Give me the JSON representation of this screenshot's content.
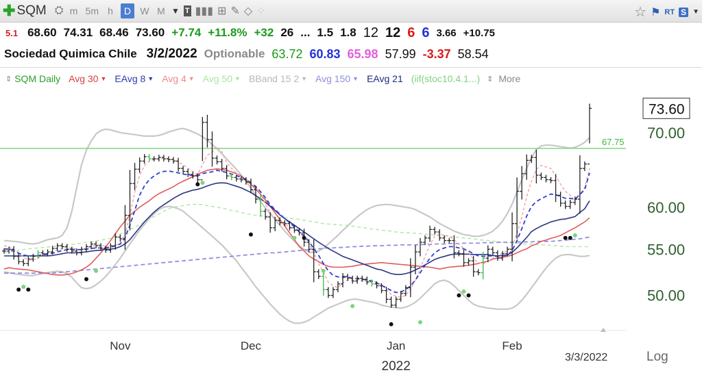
{
  "toolbar": {
    "symbol": "SQM",
    "timeframes": [
      "m",
      "5m",
      "h",
      "D",
      "W",
      "M"
    ],
    "active_timeframe": "D",
    "rt_label": "RT",
    "s_label": "S"
  },
  "quote_row1": {
    "level": "5.1",
    "open": "68.60",
    "high": "74.31",
    "low": "68.46",
    "close": "73.60",
    "change": "+7.74",
    "change_pct": "+11.8%",
    "v1": "+32",
    "v2": "26",
    "ellipsis": "...",
    "v3": "1.5",
    "v4": "1.8",
    "v5": "12",
    "v6": "12",
    "v7": "6",
    "v8": "6",
    "v9": "3.66",
    "v10": "+10.75"
  },
  "quote_row2": {
    "company": "Sociedad Quimica Chile",
    "date": "3/2/2022",
    "optionable": "Optionable",
    "n1": "63.72",
    "n2": "60.83",
    "n3": "65.98",
    "n4": "57.99",
    "n5": "-3.37",
    "n6": "58.54"
  },
  "indicators": [
    {
      "label": "SQM Daily",
      "color": "#2a9d2a"
    },
    {
      "label": "Avg 30",
      "color": "#d84040"
    },
    {
      "label": "EAvg 8",
      "color": "#2a3bb0"
    },
    {
      "label": "Avg 4",
      "color": "#f08a8a"
    },
    {
      "label": "Avg 50",
      "color": "#a8e6a0"
    },
    {
      "label": "BBand 15 2",
      "color": "#b8b8b8"
    },
    {
      "label": "Avg 150",
      "color": "#8f8fe0"
    },
    {
      "label": "EAvg 21",
      "color": "#1e2a80"
    },
    {
      "label": "(iif(stoc10.4.1...)",
      "color": "#7ed37e"
    }
  ],
  "more_label": "More",
  "chart_data": {
    "type": "line",
    "scale": "log",
    "scale_label": "Log",
    "y_ticks": [
      "70.00",
      "60.00",
      "55.00",
      "50.00"
    ],
    "ylim": [
      46.5,
      76.5
    ],
    "x_ticks": [
      "Nov",
      "Dec",
      "Jan",
      "Feb"
    ],
    "year_label": "2022",
    "last_date_label": "3/3/2022",
    "last_price_label": "73.60",
    "last_price": 73.6,
    "reference_line": {
      "value": 67.75,
      "label": "67.75",
      "color": "#7fd87f"
    },
    "colors": {
      "bar": "#222222",
      "bar_green": "#3cb83c",
      "avg30": "#e05a5a",
      "eavg8": "#2c3fd0",
      "avg4": "#f2a0a0",
      "avg50": "#b8e8b0",
      "bband": "#c8c8c8",
      "avg150": "#8f8fe0",
      "eavg21": "#2a3580",
      "dot_black": "#111111",
      "dot_green": "#7ed37e"
    },
    "closes": [
      54.8,
      55.0,
      54.2,
      53.6,
      53.4,
      53.9,
      54.2,
      54.6,
      54.5,
      54.7,
      55.1,
      55.4,
      55.3,
      55.0,
      54.8,
      54.6,
      55.0,
      55.3,
      55.6,
      55.4,
      55.1,
      54.9,
      55.4,
      56.4,
      56.2,
      59.0,
      63.0,
      64.9,
      66.0,
      66.6,
      66.3,
      66.3,
      66.5,
      66.3,
      66.2,
      66.0,
      65.0,
      64.6,
      64.2,
      64.0,
      63.5,
      71.5,
      69.0,
      66.4,
      65.9,
      65.0,
      64.0,
      63.8,
      63.6,
      63.5,
      63.2,
      62.2,
      61.0,
      59.5,
      58.8,
      57.5,
      58.4,
      58.1,
      58.0,
      57.5,
      57.2,
      56.9,
      55.8,
      55.0,
      52.5,
      52.0,
      50.6,
      50.0,
      50.6,
      51.2,
      52.0,
      51.8,
      51.5,
      51.8,
      51.7,
      51.4,
      51.2,
      51.0,
      50.5,
      49.6,
      49.0,
      49.6,
      50.2,
      50.8,
      53.0,
      54.7,
      55.8,
      56.3,
      57.3,
      57.0,
      56.3,
      56.0,
      56.0,
      54.6,
      54.5,
      53.5,
      53.7,
      52.5,
      52.4,
      54.0,
      55.0,
      54.6,
      54.0,
      54.5,
      55.0,
      58.0,
      62.0,
      64.3,
      66.1,
      66.5,
      64.1,
      63.8,
      63.5,
      63.4,
      61.5,
      60.5,
      60.1,
      60.6,
      61.0,
      65.0,
      65.6,
      73.6
    ],
    "avg30": [
      52.8,
      52.95,
      52.85,
      52.8,
      52.75,
      52.7,
      52.6,
      52.5,
      52.4,
      52.3,
      52.2,
      52.15,
      52.15,
      52.2,
      52.3,
      52.5,
      52.7,
      53.0,
      53.4,
      54.0,
      54.6,
      55.3,
      56.0,
      56.8,
      57.6,
      58.3,
      59.0,
      59.5,
      60.0,
      60.4,
      60.8,
      61.3,
      61.7,
      62.0,
      62.3,
      62.6,
      63.0,
      63.3,
      63.6,
      63.9,
      64.2,
      64.5,
      64.75,
      64.85,
      64.95,
      64.85,
      64.75,
      64.55,
      64.3,
      64.0,
      63.5,
      62.9,
      62.3,
      61.6,
      60.9,
      60.1,
      59.3,
      58.5,
      57.7,
      56.9,
      56.1,
      55.3,
      54.8,
      54.25,
      53.9,
      53.6,
      53.3,
      53.1,
      53.0,
      53.0,
      53.0,
      53.05,
      53.1,
      53.2,
      53.3,
      53.35,
      53.4,
      53.45,
      53.5,
      53.45,
      53.4,
      53.35,
      53.3,
      53.25,
      53.2,
      53.15,
      53.1,
      53.05,
      53.0,
      52.9,
      52.8,
      52.9,
      53.0,
      53.05,
      53.1,
      53.15,
      53.2,
      53.3,
      53.4,
      53.55,
      53.65,
      53.9,
      54.0,
      54.1,
      54.2,
      54.35,
      54.6,
      54.85,
      55.05,
      55.4,
      55.6,
      55.9,
      56.05,
      56.25,
      56.4,
      56.6,
      56.9,
      57.2,
      57.5,
      57.85,
      58.2,
      58.7
    ],
    "eavg8": [
      55.05,
      55.0,
      54.8,
      54.55,
      54.35,
      54.25,
      54.25,
      54.3,
      54.35,
      54.45,
      54.55,
      54.7,
      54.85,
      54.95,
      55.0,
      54.95,
      54.95,
      55.0,
      55.1,
      55.15,
      55.15,
      55.15,
      55.25,
      55.4,
      55.6,
      56.3,
      57.8,
      59.6,
      61.5,
      62.7,
      63.5,
      64.0,
      64.4,
      64.6,
      64.65,
      64.55,
      64.4,
      64.25,
      64.15,
      64.05,
      64.0,
      64.3,
      64.45,
      64.55,
      64.75,
      64.6,
      64.45,
      64.25,
      64.05,
      63.8,
      63.55,
      63.1,
      62.6,
      61.95,
      61.2,
      60.3,
      59.7,
      59.15,
      58.6,
      58.1,
      57.6,
      57.0,
      56.55,
      55.9,
      55.1,
      54.3,
      53.4,
      52.6,
      52.1,
      51.95,
      51.9,
      51.95,
      51.8,
      51.75,
      51.7,
      51.6,
      51.5,
      51.3,
      51.05,
      50.8,
      50.5,
      50.3,
      50.35,
      50.6,
      51.0,
      51.6,
      52.4,
      53.2,
      54.0,
      54.6,
      54.95,
      55.15,
      55.3,
      55.3,
      55.15,
      55.05,
      54.8,
      54.5,
      54.25,
      54.2,
      54.25,
      54.25,
      54.2,
      54.25,
      54.3,
      54.85,
      56.0,
      57.4,
      58.9,
      60.1,
      60.7,
      61.05,
      61.35,
      61.65,
      61.55,
      61.35,
      61.1,
      61.1,
      61.0,
      61.6,
      62.2,
      64.4
    ],
    "eavg21": [
      54.25,
      54.25,
      54.25,
      54.25,
      54.25,
      54.25,
      54.25,
      54.25,
      54.25,
      54.25,
      54.3,
      54.4,
      54.5,
      54.6,
      54.6,
      54.6,
      54.65,
      54.7,
      54.8,
      54.85,
      54.9,
      55.0,
      55.0,
      55.1,
      55.3,
      55.6,
      56.1,
      56.8,
      57.5,
      58.2,
      58.8,
      59.4,
      59.9,
      60.3,
      60.7,
      61.1,
      61.45,
      61.75,
      61.95,
      62.15,
      62.25,
      62.45,
      62.7,
      62.9,
      63.05,
      63.1,
      63.05,
      62.85,
      62.65,
      62.45,
      62.15,
      61.85,
      61.45,
      61.05,
      60.6,
      60.1,
      59.6,
      59.05,
      58.6,
      58.2,
      57.8,
      57.4,
      57.0,
      56.6,
      56.2,
      55.8,
      55.45,
      55.1,
      54.8,
      54.5,
      54.2,
      54.0,
      53.8,
      53.6,
      53.4,
      53.2,
      53.0,
      52.8,
      52.7,
      52.5,
      52.3,
      52.2,
      52.2,
      52.3,
      52.45,
      52.7,
      52.95,
      53.25,
      53.55,
      53.85,
      54.05,
      54.2,
      54.35,
      54.45,
      54.45,
      54.45,
      54.45,
      54.4,
      54.4,
      54.4,
      54.4,
      54.3,
      54.25,
      54.3,
      54.35,
      54.65,
      55.15,
      55.75,
      56.35,
      57.05,
      57.4,
      57.7,
      57.95,
      58.2,
      58.35,
      58.5,
      58.55,
      58.7,
      58.85,
      59.35,
      59.8,
      60.8
    ],
    "avg4": [
      55.4,
      55.3,
      55.0,
      54.6,
      54.1,
      53.8,
      53.8,
      54.0,
      54.3,
      54.5,
      54.7,
      54.9,
      55.1,
      55.2,
      55.1,
      55.0,
      55.0,
      55.1,
      55.3,
      55.5,
      55.5,
      55.3,
      55.2,
      55.4,
      55.8,
      56.7,
      59.0,
      61.9,
      64.0,
      65.4,
      66.0,
      66.2,
      66.3,
      66.4,
      66.3,
      66.2,
      65.8,
      65.5,
      65.0,
      64.6,
      64.2,
      65.5,
      66.8,
      67.2,
      68.0,
      67.3,
      65.8,
      65.0,
      64.4,
      63.8,
      63.6,
      63.0,
      62.5,
      61.7,
      60.4,
      59.3,
      58.6,
      58.2,
      57.9,
      57.6,
      57.3,
      57.0,
      56.3,
      55.7,
      54.6,
      53.4,
      52.4,
      51.4,
      51.0,
      50.8,
      51.3,
      51.6,
      51.6,
      51.6,
      51.6,
      51.4,
      51.5,
      51.4,
      51.1,
      50.6,
      50.1,
      49.9,
      49.8,
      50.0,
      50.7,
      51.6,
      52.8,
      54.2,
      55.5,
      56.5,
      56.8,
      56.6,
      56.5,
      56.1,
      55.6,
      55.1,
      54.6,
      53.9,
      53.5,
      53.4,
      53.6,
      54.0,
      54.2,
      54.6,
      54.8,
      55.4,
      56.8,
      58.8,
      61.3,
      63.3,
      64.9,
      65.4,
      65.2,
      65.0,
      64.0,
      62.9,
      62.0,
      61.5,
      60.8,
      61.6,
      62.5,
      65.0
    ],
    "avg50": [
      54.6,
      54.65,
      54.75,
      54.85,
      54.95,
      55.05,
      55.1,
      55.15,
      55.2,
      55.25,
      55.3,
      55.4,
      55.45,
      55.5,
      55.55,
      55.6,
      55.7,
      55.8,
      55.85,
      55.95,
      56.05,
      56.15,
      56.25,
      56.45,
      56.75,
      57.05,
      57.3,
      57.55,
      57.85,
      58.15,
      58.5,
      58.85,
      59.15,
      59.5,
      59.8,
      60.0,
      60.1,
      60.2,
      60.3,
      60.35,
      60.35,
      60.3,
      60.2,
      60.1,
      60.0,
      59.9,
      59.75,
      59.6,
      59.5,
      59.35,
      59.2,
      59.1,
      59.0,
      58.95,
      58.9,
      58.85,
      58.8,
      58.75,
      58.7,
      58.65,
      58.6,
      58.5,
      58.4,
      58.3,
      58.2,
      58.1,
      58.0,
      57.95,
      57.9,
      57.85,
      57.8,
      57.8,
      57.7,
      57.6,
      57.55,
      57.45,
      57.35,
      57.3,
      57.2,
      57.15,
      57.1,
      57.0,
      56.95,
      56.9,
      56.9,
      56.85,
      56.8,
      56.75,
      56.7,
      56.6,
      56.55,
      56.5,
      56.45,
      56.4,
      56.35,
      56.3,
      56.25,
      56.2,
      56.1,
      56.05,
      56.0,
      55.95,
      55.85,
      55.8,
      55.75,
      55.7,
      55.7,
      55.65,
      55.6,
      55.6,
      55.55,
      55.5,
      55.5,
      55.45,
      55.4,
      55.35,
      55.3,
      55.3,
      55.3,
      55.3,
      55.3,
      55.3
    ],
    "avg150": [
      52.35,
      52.35,
      52.35,
      52.35,
      52.35,
      52.35,
      52.35,
      52.35,
      52.35,
      52.35,
      52.35,
      52.4,
      52.45,
      52.5,
      52.55,
      52.6,
      52.65,
      52.7,
      52.75,
      52.8,
      52.85,
      52.9,
      52.95,
      53.0,
      53.05,
      53.1,
      53.15,
      53.2,
      53.25,
      53.3,
      53.35,
      53.4,
      53.45,
      53.5,
      53.55,
      53.6,
      53.65,
      53.7,
      53.75,
      53.8,
      53.85,
      53.9,
      53.95,
      54.0,
      54.05,
      54.1,
      54.15,
      54.2,
      54.25,
      54.3,
      54.35,
      54.4,
      54.45,
      54.5,
      54.55,
      54.6,
      54.6,
      54.65,
      54.7,
      54.75,
      54.8,
      54.85,
      54.9,
      54.95,
      55.0,
      55.05,
      55.1,
      55.15,
      55.15,
      55.2,
      55.2,
      55.25,
      55.3,
      55.3,
      55.35,
      55.35,
      55.4,
      55.4,
      55.4,
      55.45,
      55.45,
      55.45,
      55.5,
      55.5,
      55.5,
      55.5,
      55.55,
      55.55,
      55.55,
      55.6,
      55.6,
      55.6,
      55.65,
      55.65,
      55.65,
      55.7,
      55.7,
      55.7,
      55.7,
      55.75,
      55.75,
      55.75,
      55.8,
      55.8,
      55.8,
      55.8,
      55.85,
      55.85,
      55.85,
      55.85,
      55.9,
      55.9,
      55.9,
      55.9,
      55.95,
      56.0,
      56.05,
      56.1,
      56.15,
      56.2,
      56.3,
      56.4
    ],
    "bband_upper": [
      56.0,
      55.95,
      55.9,
      55.85,
      55.75,
      55.65,
      55.6,
      55.7,
      55.9,
      56.1,
      56.2,
      56.3,
      56.6,
      57.5,
      59.5,
      62.5,
      65.5,
      67.5,
      68.8,
      69.8,
      70.3,
      70.5,
      70.4,
      70.2,
      70.0,
      69.9,
      69.8,
      69.7,
      69.6,
      69.5,
      69.5,
      69.5,
      69.6,
      69.8,
      70.1,
      70.3,
      70.5,
      70.6,
      70.4,
      70.1,
      69.8,
      69.4,
      68.9,
      68.3,
      67.7,
      67.0,
      66.3,
      65.6,
      64.9,
      64.1,
      63.3,
      62.4,
      61.5,
      60.7,
      59.9,
      59.2,
      58.5,
      57.8,
      57.1,
      56.5,
      55.9,
      55.4,
      55.0,
      54.7,
      54.6,
      54.8,
      55.1,
      55.6,
      56.1,
      56.6,
      57.2,
      57.7,
      58.3,
      58.8,
      59.3,
      59.7,
      60.0,
      60.2,
      60.3,
      60.35,
      60.3,
      60.2,
      60.1,
      60.0,
      59.9,
      59.7,
      59.4,
      59.1,
      58.8,
      58.4,
      58.0,
      57.7,
      57.4,
      57.1,
      56.9,
      56.7,
      56.6,
      56.5,
      56.5,
      56.6,
      56.8,
      57.1,
      57.6,
      58.3,
      59.2,
      60.4,
      61.9,
      63.5,
      65.0,
      66.5,
      67.6,
      68.1,
      68.2,
      68.2,
      68.1,
      68.0,
      67.9,
      67.8,
      67.9,
      68.2,
      68.6,
      69.3
    ],
    "bband_lower": [
      52.5,
      52.4,
      52.3,
      52.2,
      52.15,
      52.1,
      52.1,
      52.2,
      52.3,
      52.4,
      52.5,
      52.55,
      52.5,
      52.3,
      51.9,
      51.3,
      50.8,
      50.7,
      50.8,
      51.1,
      51.5,
      52.0,
      52.6,
      53.3,
      54.0,
      54.8,
      55.6,
      56.4,
      57.2,
      57.9,
      58.6,
      59.2,
      59.7,
      60.0,
      60.1,
      60.0,
      59.8,
      59.5,
      59.0,
      58.5,
      58.0,
      57.5,
      57.0,
      56.5,
      56.0,
      55.5,
      54.9,
      54.3,
      53.7,
      53.0,
      52.3,
      51.6,
      50.9,
      50.3,
      49.7,
      49.1,
      48.6,
      48.1,
      47.7,
      47.4,
      47.2,
      47.2,
      47.3,
      47.5,
      47.8,
      48.1,
      48.4,
      48.7,
      48.9,
      49.1,
      49.3,
      49.5,
      49.6,
      49.6,
      49.5,
      49.4,
      49.3,
      49.2,
      49.0,
      48.9,
      48.8,
      48.75,
      48.7,
      48.8,
      49.0,
      49.3,
      49.7,
      50.2,
      50.7,
      51.2,
      51.5,
      51.6,
      51.4,
      51.0,
      50.5,
      50.0,
      49.5,
      49.1,
      48.9,
      48.8,
      48.7,
      48.65,
      48.6,
      48.6,
      48.6,
      48.7,
      49.0,
      49.5,
      50.1,
      50.8,
      51.5,
      52.2,
      52.9,
      53.5,
      54.0,
      54.3,
      54.4,
      54.4,
      54.3,
      54.2,
      54.2,
      54.3
    ]
  }
}
